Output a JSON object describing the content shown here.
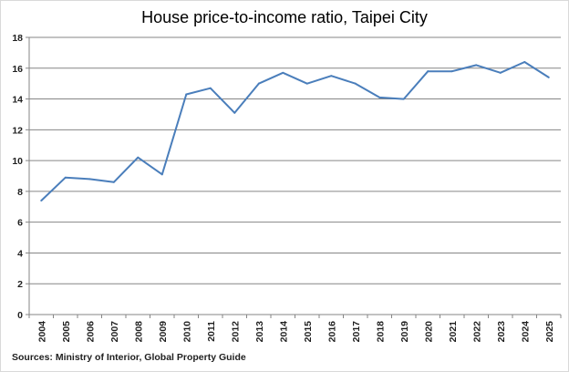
{
  "chart_data": {
    "type": "line",
    "title": "House price-to-income ratio, Taipei City",
    "source": "Sources: Ministry of Interior, Global Property Guide",
    "xlabel": "",
    "ylabel": "",
    "categories": [
      "2004",
      "2005",
      "2006",
      "2007",
      "2008",
      "2009",
      "2010",
      "2011",
      "2012",
      "2013",
      "2014",
      "2015",
      "2016",
      "2017",
      "2018",
      "2019",
      "2020",
      "2021",
      "2022",
      "2023",
      "2024",
      "2025"
    ],
    "series": [
      {
        "values": [
          7.4,
          8.9,
          8.8,
          8.6,
          10.2,
          9.1,
          14.3,
          14.7,
          13.1,
          15.0,
          15.7,
          15.0,
          15.5,
          15.0,
          14.1,
          14.0,
          15.8,
          15.8,
          16.2,
          15.7,
          16.4,
          15.4
        ],
        "color": "#4a7ebb"
      }
    ],
    "ylim": [
      0,
      18
    ],
    "yticks": [
      0,
      2,
      4,
      6,
      8,
      10,
      12,
      14,
      16,
      18
    ],
    "grid": true,
    "gridColor": "#868686",
    "legend": "none"
  }
}
